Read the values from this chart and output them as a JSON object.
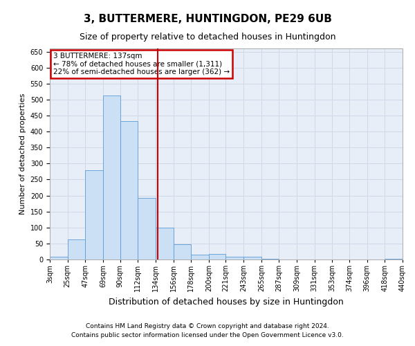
{
  "title": "3, BUTTERMERE, HUNTINGDON, PE29 6UB",
  "subtitle": "Size of property relative to detached houses in Huntingdon",
  "xlabel": "Distribution of detached houses by size in Huntingdon",
  "ylabel": "Number of detached properties",
  "footer_line1": "Contains HM Land Registry data © Crown copyright and database right 2024.",
  "footer_line2": "Contains public sector information licensed under the Open Government Licence v3.0.",
  "annotation_title": "3 BUTTERMERE: 137sqm",
  "annotation_line1": "← 78% of detached houses are smaller (1,311)",
  "annotation_line2": "22% of semi-detached houses are larger (362) →",
  "property_line_x": 137,
  "bar_color": "#cce0f5",
  "bar_edge_color": "#5b9bd5",
  "line_color": "#cc0000",
  "annotation_box_color": "#cc0000",
  "grid_color": "#d0d8e8",
  "background_color": "#e8eef8",
  "fig_background": "#ffffff",
  "bins_start": [
    3,
    25,
    47,
    69,
    90,
    112,
    134,
    156,
    178,
    200,
    221,
    243,
    265,
    287,
    309,
    331,
    353,
    374,
    396,
    418
  ],
  "bins_end": [
    25,
    47,
    69,
    90,
    112,
    134,
    156,
    178,
    200,
    221,
    243,
    265,
    287,
    309,
    331,
    353,
    374,
    396,
    418,
    440
  ],
  "bin_labels": [
    "3sqm",
    "25sqm",
    "47sqm",
    "69sqm",
    "90sqm",
    "112sqm",
    "134sqm",
    "156sqm",
    "178sqm",
    "200sqm",
    "221sqm",
    "243sqm",
    "265sqm",
    "287sqm",
    "309sqm",
    "331sqm",
    "353sqm",
    "374sqm",
    "396sqm",
    "418sqm",
    "440sqm"
  ],
  "values": [
    8,
    63,
    280,
    512,
    433,
    192,
    100,
    47,
    15,
    17,
    9,
    8,
    3,
    0,
    0,
    0,
    0,
    0,
    0,
    2
  ],
  "ylim": [
    0,
    660
  ],
  "yticks": [
    0,
    50,
    100,
    150,
    200,
    250,
    300,
    350,
    400,
    450,
    500,
    550,
    600,
    650
  ],
  "title_fontsize": 11,
  "subtitle_fontsize": 9,
  "ylabel_fontsize": 8,
  "xlabel_fontsize": 9,
  "tick_fontsize": 7,
  "annotation_fontsize": 7.5,
  "footer_fontsize": 6.5
}
